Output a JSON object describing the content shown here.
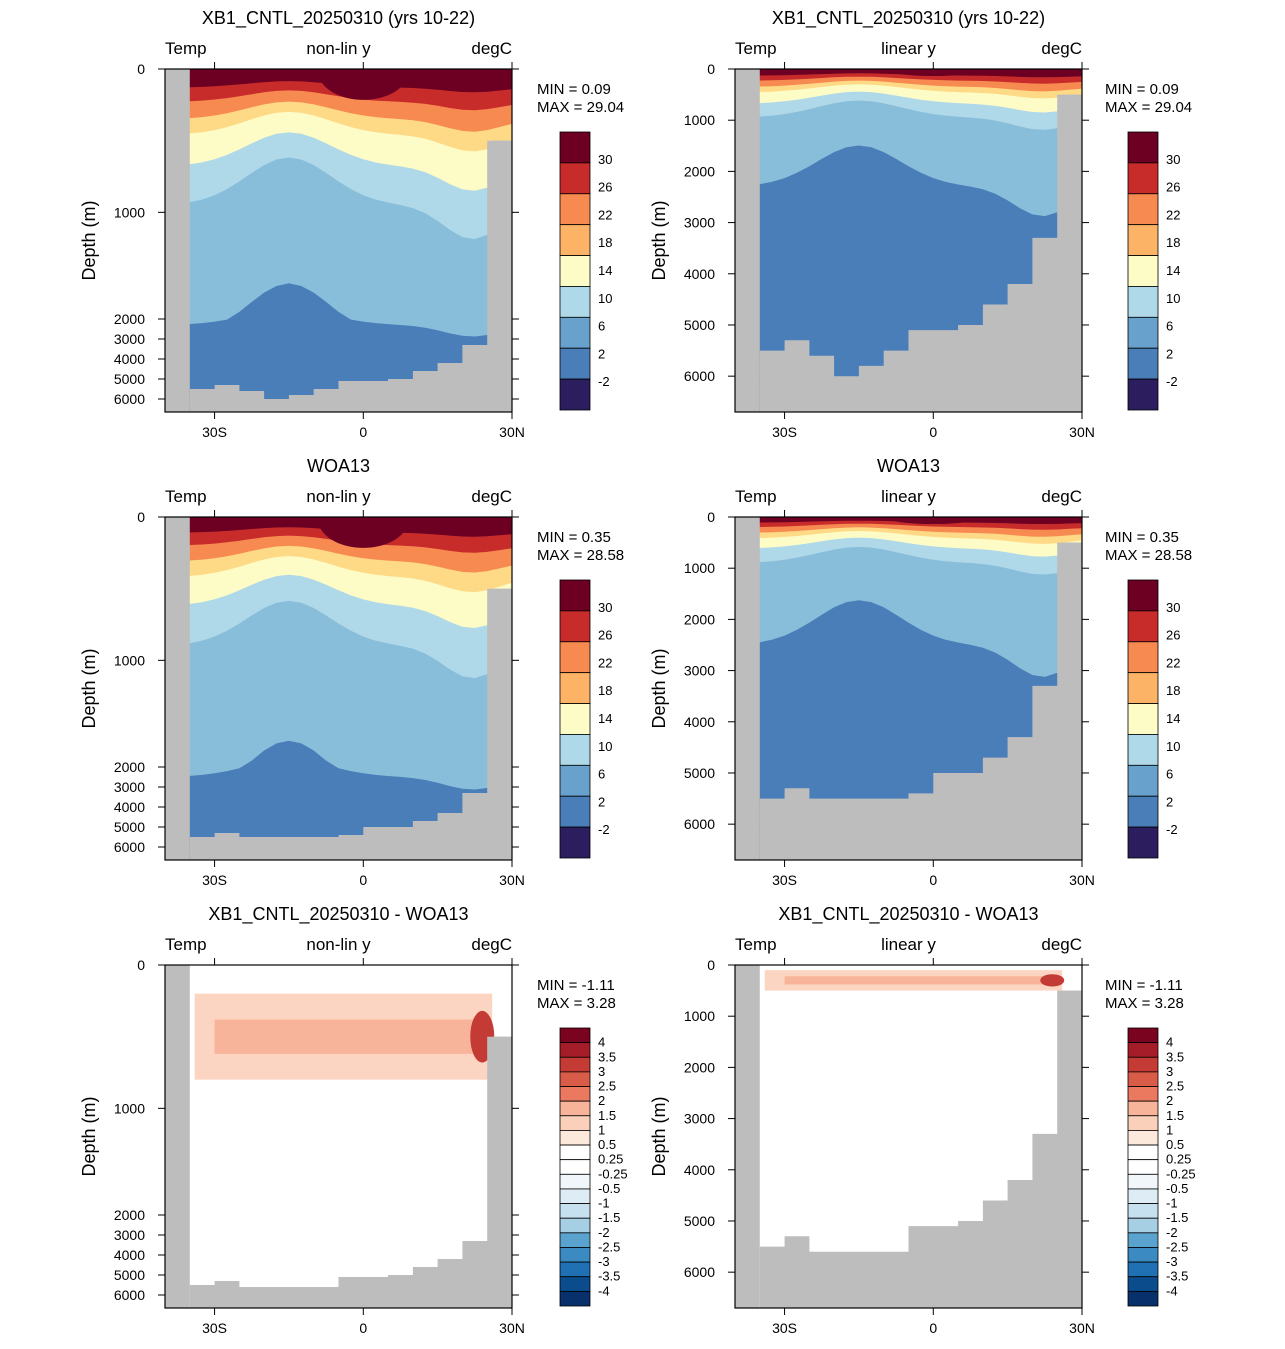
{
  "colors": {
    "land": "#bdbdbd",
    "temp_scale": [
      "#2c1d5e",
      "#3a4a9b",
      "#4a7eb8",
      "#67a1cc",
      "#89bedb",
      "#afd8e8",
      "#e2f2f1",
      "#fdfbc6",
      "#feda86",
      "#fdb365",
      "#f78a51",
      "#e45a3a",
      "#c82c2a",
      "#9a1a2a",
      "#6d0022"
    ],
    "diff_scale": [
      "#08306b",
      "#0b4d8c",
      "#2070b4",
      "#3b8ac2",
      "#5aa3cf",
      "#80bad9",
      "#a7cfe4",
      "#c6e0ef",
      "#deecf5",
      "#f0f6fa",
      "#ffffff",
      "#ffffff",
      "#fde8dc",
      "#fbd0bb",
      "#f8b49a",
      "#f4977a",
      "#ea7960",
      "#d95c48",
      "#c43a34",
      "#a61d2a",
      "#7a0420"
    ]
  },
  "panels": [
    {
      "title": "XB1_CNTL_20250310 (yrs 10-22)",
      "left": "Temp",
      "center": "non-lin y",
      "right": "degC",
      "ylabel": "Depth (m)",
      "stats": {
        "min_label": "MIN =",
        "min": "0.09",
        "max_label": "MAX =",
        "max": "29.04"
      },
      "colorbar_labels": [
        "30",
        "26",
        "22",
        "18",
        "14",
        "10",
        "6",
        "2",
        "-2"
      ]
    },
    {
      "title": "XB1_CNTL_20250310 (yrs 10-22)",
      "left": "Temp",
      "center": "linear y",
      "right": "degC",
      "ylabel": "Depth (m)",
      "stats": {
        "min_label": "MIN =",
        "min": "0.09",
        "max_label": "MAX =",
        "max": "29.04"
      },
      "colorbar_labels": [
        "30",
        "26",
        "22",
        "18",
        "14",
        "10",
        "6",
        "2",
        "-2"
      ]
    },
    {
      "title": "WOA13",
      "left": "Temp",
      "center": "non-lin y",
      "right": "degC",
      "ylabel": "Depth (m)",
      "stats": {
        "min_label": "MIN =",
        "min": "0.35",
        "max_label": "MAX =",
        "max": "28.58"
      },
      "colorbar_labels": [
        "30",
        "26",
        "22",
        "18",
        "14",
        "10",
        "6",
        "2",
        "-2"
      ]
    },
    {
      "title": "WOA13",
      "left": "Temp",
      "center": "linear y",
      "right": "degC",
      "ylabel": "Depth (m)",
      "stats": {
        "min_label": "MIN =",
        "min": "0.35",
        "max_label": "MAX =",
        "max": "28.58"
      },
      "colorbar_labels": [
        "30",
        "26",
        "22",
        "18",
        "14",
        "10",
        "6",
        "2",
        "-2"
      ]
    },
    {
      "title": "XB1_CNTL_20250310 - WOA13",
      "left": "Temp",
      "center": "non-lin y",
      "right": "degC",
      "ylabel": "Depth (m)",
      "stats": {
        "min_label": "MIN =",
        "min": "-1.11",
        "max_label": "MAX =",
        "max": "3.28"
      },
      "colorbar_labels": [
        "4",
        "3.5",
        "3",
        "2.5",
        "2",
        "1.5",
        "1",
        "0.5",
        "0.25",
        "-0.25",
        "-0.5",
        "-1",
        "-1.5",
        "-2",
        "-2.5",
        "-3",
        "-3.5",
        "-4"
      ]
    },
    {
      "title": "XB1_CNTL_20250310 - WOA13",
      "left": "Temp",
      "center": "linear y",
      "right": "degC",
      "ylabel": "Depth (m)",
      "stats": {
        "min_label": "MIN =",
        "min": "-1.11",
        "max_label": "MAX =",
        "max": "3.28"
      },
      "colorbar_labels": [
        "4",
        "3.5",
        "3",
        "2.5",
        "2",
        "1.5",
        "1",
        "0.5",
        "0.25",
        "-0.25",
        "-0.5",
        "-1",
        "-1.5",
        "-2",
        "-2.5",
        "-3",
        "-3.5",
        "-4"
      ]
    }
  ],
  "chart_data": [
    {
      "type": "heatmap",
      "title": "XB1_CNTL_20250310 (yrs 10-22)",
      "ylabel": "Depth (m)",
      "y_scale": "non-lin y",
      "x_ticks": [
        "30S",
        "0",
        "30N"
      ],
      "y_ticks": [
        "0",
        "1000",
        "2000",
        "3000",
        "4000",
        "5000",
        "6000"
      ],
      "xlim": [
        -40,
        30
      ],
      "ylim": [
        6700,
        0
      ],
      "min": 0.09,
      "max": 29.04,
      "units": "degC",
      "isotherm_depths_m": {
        "26": 130,
        "22": 230,
        "18": 350,
        "14": 460,
        "10": 680,
        "6": 950,
        "2": 2300
      },
      "bathymetry": {
        "lat": [
          -35,
          -30,
          -25,
          -20,
          -15,
          -10,
          -5,
          0,
          5,
          10,
          15,
          20,
          25
        ],
        "depth_m": [
          5500,
          5300,
          5600,
          6000,
          5800,
          5500,
          5100,
          5100,
          5000,
          4600,
          4200,
          3300,
          500
        ]
      }
    },
    {
      "type": "heatmap",
      "title": "XB1_CNTL_20250310 (yrs 10-22)",
      "ylabel": "Depth (m)",
      "y_scale": "linear y",
      "x_ticks": [
        "30S",
        "0",
        "30N"
      ],
      "y_ticks": [
        "0",
        "1000",
        "2000",
        "3000",
        "4000",
        "5000",
        "6000"
      ],
      "xlim": [
        -40,
        30
      ],
      "ylim": [
        6700,
        0
      ],
      "min": 0.09,
      "max": 29.04,
      "units": "degC",
      "isotherm_depths_m": {
        "26": 130,
        "22": 230,
        "18": 350,
        "14": 460,
        "10": 680,
        "6": 950,
        "2": 2300
      },
      "bathymetry": {
        "lat": [
          -35,
          -30,
          -25,
          -20,
          -15,
          -10,
          -5,
          0,
          5,
          10,
          15,
          20,
          25
        ],
        "depth_m": [
          5500,
          5300,
          5600,
          6000,
          5800,
          5500,
          5100,
          5100,
          5000,
          4600,
          4200,
          3300,
          500
        ]
      }
    },
    {
      "type": "heatmap",
      "title": "WOA13",
      "ylabel": "Depth (m)",
      "y_scale": "non-lin y",
      "x_ticks": [
        "30S",
        "0",
        "30N"
      ],
      "y_ticks": [
        "0",
        "1000",
        "2000",
        "3000",
        "4000",
        "5000",
        "6000"
      ],
      "xlim": [
        -40,
        30
      ],
      "ylim": [
        6700,
        0
      ],
      "min": 0.35,
      "max": 28.58,
      "units": "degC",
      "isotherm_depths_m": {
        "26": 110,
        "22": 200,
        "18": 310,
        "14": 420,
        "10": 620,
        "6": 900,
        "2": 2500
      },
      "bathymetry": {
        "lat": [
          -35,
          -30,
          -25,
          -20,
          -15,
          -10,
          -5,
          0,
          5,
          10,
          15,
          20,
          25
        ],
        "depth_m": [
          5500,
          5300,
          5500,
          5500,
          5500,
          5500,
          5400,
          5000,
          5000,
          4700,
          4300,
          3300,
          500
        ]
      }
    },
    {
      "type": "heatmap",
      "title": "WOA13",
      "ylabel": "Depth (m)",
      "y_scale": "linear y",
      "x_ticks": [
        "30S",
        "0",
        "30N"
      ],
      "y_ticks": [
        "0",
        "1000",
        "2000",
        "3000",
        "4000",
        "5000",
        "6000"
      ],
      "xlim": [
        -40,
        30
      ],
      "ylim": [
        6700,
        0
      ],
      "min": 0.35,
      "max": 28.58,
      "units": "degC",
      "isotherm_depths_m": {
        "26": 110,
        "22": 200,
        "18": 310,
        "14": 420,
        "10": 620,
        "6": 900,
        "2": 2500
      },
      "bathymetry": {
        "lat": [
          -35,
          -30,
          -25,
          -20,
          -15,
          -10,
          -5,
          0,
          5,
          10,
          15,
          20,
          25
        ],
        "depth_m": [
          5500,
          5300,
          5500,
          5500,
          5500,
          5500,
          5400,
          5000,
          5000,
          4700,
          4300,
          3300,
          500
        ]
      }
    },
    {
      "type": "heatmap",
      "title": "XB1_CNTL_20250310 - WOA13",
      "ylabel": "Depth (m)",
      "y_scale": "non-lin y",
      "x_ticks": [
        "30S",
        "0",
        "30N"
      ],
      "y_ticks": [
        "0",
        "1000",
        "2000",
        "3000",
        "4000",
        "5000",
        "6000"
      ],
      "xlim": [
        -40,
        30
      ],
      "ylim": [
        6700,
        0
      ],
      "min": -1.11,
      "max": 3.28,
      "units": "degC",
      "anomaly_layer_m": [
        200,
        800
      ],
      "peak_anomaly": 3.28,
      "bathymetry": {
        "lat": [
          -35,
          -30,
          -25,
          -20,
          -15,
          -10,
          -5,
          0,
          5,
          10,
          15,
          20,
          25
        ],
        "depth_m": [
          5500,
          5300,
          5600,
          5600,
          5600,
          5600,
          5100,
          5100,
          5000,
          4600,
          4200,
          3300,
          500
        ]
      }
    },
    {
      "type": "heatmap",
      "title": "XB1_CNTL_20250310 - WOA13",
      "ylabel": "Depth (m)",
      "y_scale": "linear y",
      "x_ticks": [
        "30S",
        "0",
        "30N"
      ],
      "y_ticks": [
        "0",
        "1000",
        "2000",
        "3000",
        "4000",
        "5000",
        "6000"
      ],
      "xlim": [
        -40,
        30
      ],
      "ylim": [
        6700,
        0
      ],
      "min": -1.11,
      "max": 3.28,
      "units": "degC",
      "anomaly_layer_m": [
        100,
        500
      ],
      "peak_anomaly": 3.28,
      "bathymetry": {
        "lat": [
          -35,
          -30,
          -25,
          -20,
          -15,
          -10,
          -5,
          0,
          5,
          10,
          15,
          20,
          25
        ],
        "depth_m": [
          5500,
          5300,
          5600,
          5600,
          5600,
          5600,
          5100,
          5100,
          5000,
          4600,
          4200,
          3300,
          500
        ]
      }
    }
  ]
}
